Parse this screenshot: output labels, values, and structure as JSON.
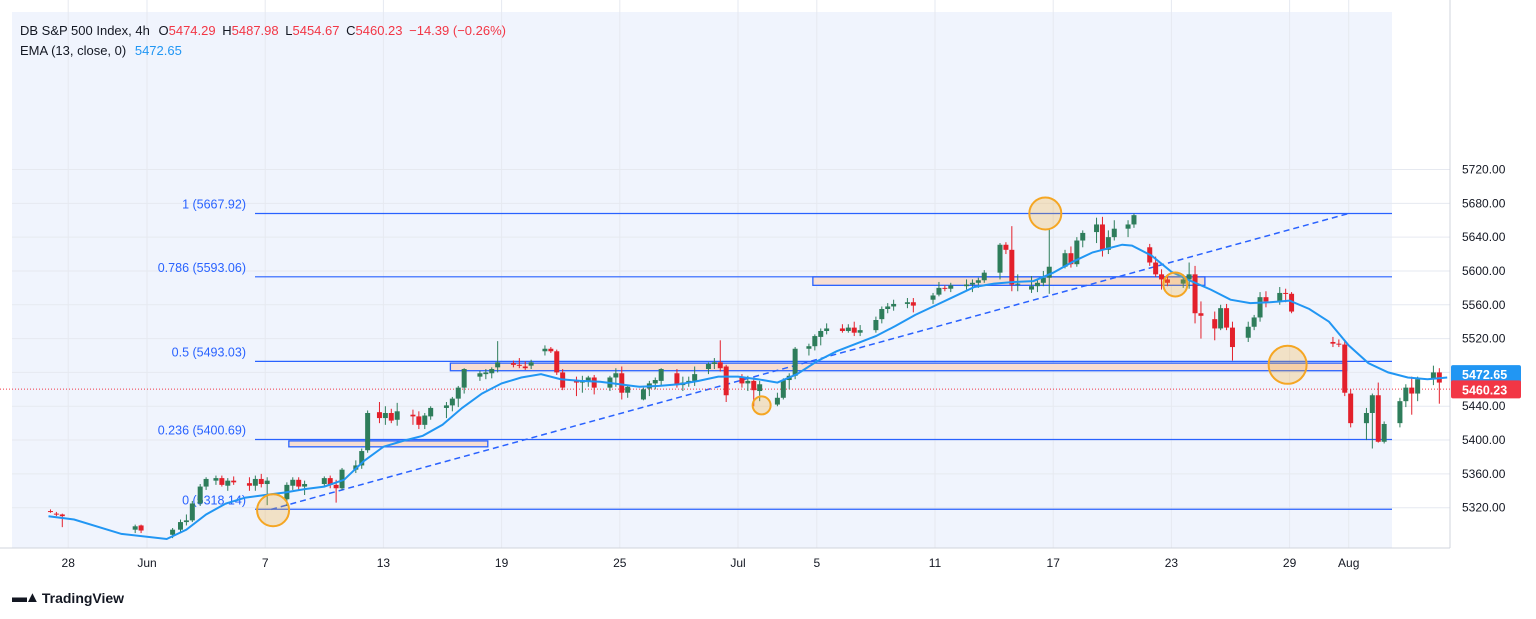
{
  "legend": {
    "symbol": "DB S&P 500 Index, 4h",
    "open_label": "O",
    "open": "5474.29",
    "high_label": "H",
    "high": "5487.98",
    "low_label": "L",
    "low": "5454.67",
    "close_label": "C",
    "close": "5460.23",
    "change": "−14.39 (−0.26%)",
    "ema_label": "EMA (13, close, 0)",
    "ema_value": "5472.65"
  },
  "branding": {
    "name": "TradingView"
  },
  "colors": {
    "up": "#26a69a",
    "up_dark": "#2e7d5b",
    "down": "#e3202b",
    "ema": "#2196f3",
    "fib": "#2962ff",
    "zone_fill": "#f7ded3",
    "zone_stroke": "#2962ff",
    "circle": "#f5a623",
    "price_ema_badge": "#2196f3",
    "price_close_badge": "#f23645"
  },
  "chart_data": {
    "type": "candlestick",
    "ylim": [
      5288,
      5738
    ],
    "y_ticks": [
      "5320.00",
      "5360.00",
      "5400.00",
      "5440.00",
      "5480.00",
      "5520.00",
      "5560.00",
      "5600.00",
      "5640.00",
      "5680.00",
      "5720.00"
    ],
    "x_ticks": [
      {
        "label": "28",
        "day": -4
      },
      {
        "label": "Jun",
        "day": 0
      },
      {
        "label": "7",
        "day": 6
      },
      {
        "label": "13",
        "day": 12
      },
      {
        "label": "19",
        "day": 18
      },
      {
        "label": "25",
        "day": 24
      },
      {
        "label": "Jul",
        "day": 30
      },
      {
        "label": "5",
        "day": 34
      },
      {
        "label": "11",
        "day": 40
      },
      {
        "label": "17",
        "day": 46
      },
      {
        "label": "23",
        "day": 52
      },
      {
        "label": "29",
        "day": 58
      },
      {
        "label": "Aug",
        "day": 61
      }
    ],
    "fib_levels": [
      {
        "label": "1 (5667.92)",
        "value": 5667.92
      },
      {
        "label": "0.786 (5593.06)",
        "value": 5593.06
      },
      {
        "label": "0.5 (5493.03)",
        "value": 5493.03
      },
      {
        "label": "0.236 (5400.69)",
        "value": 5400.69
      },
      {
        "label": "0 (5318.14)",
        "value": 5318.14
      }
    ],
    "trend_line": {
      "from": {
        "day": 6.3,
        "price": 5318
      },
      "to": {
        "day": 61,
        "price": 5668
      }
    },
    "zones": [
      {
        "day_from": 7.2,
        "day_to": 17.3,
        "price_top": 5399,
        "price_bottom": 5392
      },
      {
        "day_from": 15.4,
        "day_to": 60.9,
        "price_top": 5491,
        "price_bottom": 5482
      },
      {
        "day_from": 33.8,
        "day_to": 53.7,
        "price_top": 5593,
        "price_bottom": 5583
      }
    ],
    "circles": [
      {
        "day": 6.4,
        "price": 5317,
        "r": 16
      },
      {
        "day": 31.2,
        "price": 5441,
        "r": 9
      },
      {
        "day": 45.6,
        "price": 5668,
        "r": 16
      },
      {
        "day": 52.2,
        "price": 5584,
        "r": 12
      },
      {
        "day": 57.9,
        "price": 5489,
        "r": 19
      }
    ],
    "price_badges": [
      {
        "label": "5472.65",
        "value": 5478,
        "color": "#2196f3"
      },
      {
        "label": "5460.23",
        "value": 5460,
        "color": "#f23645"
      }
    ],
    "close_line": 5460.23,
    "candles": [
      [
        -4.9,
        5316,
        5318,
        5314,
        5315
      ],
      [
        -4.6,
        5313,
        5315,
        5310,
        5312
      ],
      [
        -4.3,
        5312,
        5313,
        5297,
        5310
      ],
      [
        -0.6,
        5294,
        5300,
        5290,
        5298
      ],
      [
        -0.3,
        5299,
        5300,
        5290,
        5293
      ],
      [
        1.3,
        5288,
        5296,
        5284,
        5294
      ],
      [
        1.7,
        5294,
        5306,
        5291,
        5303
      ],
      [
        2.0,
        5303,
        5312,
        5299,
        5305
      ],
      [
        2.3,
        5305,
        5328,
        5303,
        5325
      ],
      [
        2.7,
        5325,
        5348,
        5322,
        5345
      ],
      [
        3.0,
        5345,
        5356,
        5341,
        5354
      ],
      [
        3.5,
        5352,
        5358,
        5347,
        5355
      ],
      [
        3.8,
        5355,
        5358,
        5345,
        5347
      ],
      [
        4.1,
        5346,
        5355,
        5340,
        5352
      ],
      [
        4.4,
        5352,
        5357,
        5347,
        5350
      ],
      [
        5.2,
        5349,
        5356,
        5340,
        5346
      ],
      [
        5.5,
        5346,
        5358,
        5340,
        5354
      ],
      [
        5.8,
        5354,
        5360,
        5344,
        5348
      ],
      [
        6.1,
        5348,
        5356,
        5323,
        5352
      ],
      [
        7.1,
        5330,
        5350,
        5322,
        5347
      ],
      [
        7.4,
        5346,
        5356,
        5341,
        5353
      ],
      [
        7.7,
        5353,
        5356,
        5340,
        5345
      ],
      [
        8.0,
        5345,
        5352,
        5335,
        5348
      ],
      [
        9.0,
        5348,
        5357,
        5345,
        5355
      ],
      [
        9.3,
        5355,
        5358,
        5343,
        5347
      ],
      [
        9.6,
        5347,
        5353,
        5326,
        5343
      ],
      [
        9.9,
        5343,
        5367,
        5341,
        5365
      ],
      [
        10.6,
        5365,
        5376,
        5361,
        5370
      ],
      [
        10.9,
        5370,
        5390,
        5366,
        5387
      ],
      [
        11.2,
        5388,
        5435,
        5385,
        5432
      ],
      [
        11.8,
        5433,
        5445,
        5420,
        5426
      ],
      [
        12.1,
        5426,
        5440,
        5418,
        5432
      ],
      [
        12.4,
        5432,
        5437,
        5420,
        5423
      ],
      [
        12.7,
        5424,
        5444,
        5417,
        5434
      ],
      [
        13.5,
        5430,
        5436,
        5418,
        5428
      ],
      [
        13.8,
        5428,
        5434,
        5413,
        5418
      ],
      [
        14.1,
        5418,
        5432,
        5413,
        5429
      ],
      [
        14.4,
        5428,
        5440,
        5424,
        5438
      ],
      [
        15.2,
        5438,
        5445,
        5426,
        5441
      ],
      [
        15.5,
        5441,
        5451,
        5434,
        5449
      ],
      [
        15.8,
        5449,
        5464,
        5439,
        5462
      ],
      [
        16.1,
        5462,
        5485,
        5455,
        5484
      ],
      [
        16.9,
        5475,
        5482,
        5470,
        5479
      ],
      [
        17.2,
        5478,
        5484,
        5472,
        5480
      ],
      [
        17.5,
        5479,
        5486,
        5473,
        5484
      ],
      [
        17.8,
        5486,
        5517,
        5480,
        5492
      ],
      [
        18.6,
        5491,
        5494,
        5486,
        5489
      ],
      [
        18.9,
        5489,
        5497,
        5485,
        5488
      ],
      [
        19.2,
        5487,
        5493,
        5483,
        5485
      ],
      [
        19.5,
        5488,
        5495,
        5484,
        5492
      ],
      [
        20.2,
        5505,
        5512,
        5500,
        5508
      ],
      [
        20.5,
        5508,
        5510,
        5503,
        5505
      ],
      [
        20.8,
        5505,
        5507,
        5477,
        5480
      ],
      [
        21.1,
        5480,
        5484,
        5459,
        5462
      ],
      [
        21.8,
        5470,
        5475,
        5452,
        5468
      ],
      [
        22.1,
        5468,
        5476,
        5456,
        5471
      ],
      [
        22.4,
        5470,
        5476,
        5463,
        5474
      ],
      [
        22.7,
        5474,
        5477,
        5454,
        5462
      ],
      [
        23.5,
        5462,
        5476,
        5458,
        5474
      ],
      [
        23.8,
        5474,
        5485,
        5463,
        5479
      ],
      [
        24.1,
        5479,
        5487,
        5448,
        5456
      ],
      [
        24.4,
        5456,
        5465,
        5450,
        5463
      ],
      [
        25.2,
        5448,
        5462,
        5447,
        5460
      ],
      [
        25.5,
        5461,
        5470,
        5452,
        5467
      ],
      [
        25.8,
        5467,
        5474,
        5460,
        5471
      ],
      [
        26.1,
        5470,
        5485,
        5464,
        5484
      ],
      [
        26.9,
        5479,
        5484,
        5462,
        5465
      ],
      [
        27.2,
        5465,
        5475,
        5458,
        5468
      ],
      [
        27.5,
        5468,
        5475,
        5463,
        5470
      ],
      [
        27.8,
        5470,
        5487,
        5464,
        5478
      ],
      [
        28.5,
        5484,
        5492,
        5478,
        5490
      ],
      [
        28.8,
        5490,
        5497,
        5484,
        5492
      ],
      [
        29.1,
        5492,
        5518,
        5481,
        5485
      ],
      [
        29.4,
        5487,
        5489,
        5445,
        5453
      ],
      [
        30.2,
        5474,
        5478,
        5462,
        5467
      ],
      [
        30.5,
        5467,
        5476,
        5458,
        5470
      ],
      [
        30.8,
        5470,
        5474,
        5440,
        5459
      ],
      [
        31.1,
        5458,
        5470,
        5446,
        5466
      ],
      [
        32.0,
        5442,
        5456,
        5440,
        5450
      ],
      [
        32.3,
        5450,
        5473,
        5448,
        5471
      ],
      [
        32.6,
        5471,
        5479,
        5460,
        5476
      ],
      [
        32.9,
        5476,
        5510,
        5472,
        5508
      ],
      [
        33.6,
        5508,
        5514,
        5500,
        5511
      ],
      [
        33.9,
        5511,
        5525,
        5506,
        5523
      ],
      [
        34.2,
        5522,
        5532,
        5512,
        5529
      ],
      [
        34.5,
        5529,
        5538,
        5525,
        5532
      ],
      [
        35.3,
        5532,
        5537,
        5527,
        5529
      ],
      [
        35.6,
        5529,
        5537,
        5527,
        5533
      ],
      [
        35.9,
        5533,
        5540,
        5523,
        5527
      ],
      [
        36.2,
        5527,
        5536,
        5523,
        5530
      ],
      [
        37.0,
        5530,
        5546,
        5527,
        5542
      ],
      [
        37.3,
        5543,
        5558,
        5538,
        5555
      ],
      [
        37.6,
        5555,
        5562,
        5550,
        5558
      ],
      [
        37.9,
        5558,
        5566,
        5553,
        5561
      ],
      [
        38.6,
        5561,
        5568,
        5556,
        5563
      ],
      [
        38.9,
        5563,
        5568,
        5551,
        5559
      ],
      [
        39.9,
        5566,
        5574,
        5561,
        5571
      ],
      [
        40.2,
        5572,
        5587,
        5570,
        5580
      ],
      [
        40.5,
        5580,
        5583,
        5576,
        5579
      ],
      [
        40.8,
        5579,
        5586,
        5575,
        5583
      ],
      [
        41.6,
        5582,
        5590,
        5578,
        5584
      ],
      [
        41.9,
        5584,
        5590,
        5575,
        5586
      ],
      [
        42.2,
        5586,
        5592,
        5580,
        5589
      ],
      [
        42.5,
        5589,
        5601,
        5586,
        5598
      ],
      [
        43.3,
        5598,
        5633,
        5590,
        5631
      ],
      [
        43.6,
        5631,
        5634,
        5620,
        5625
      ],
      [
        43.9,
        5625,
        5653,
        5576,
        5584
      ],
      [
        44.2,
        5584,
        5596,
        5576,
        5585
      ],
      [
        44.9,
        5578,
        5594,
        5574,
        5582
      ],
      [
        45.2,
        5582,
        5589,
        5575,
        5586
      ],
      [
        45.5,
        5586,
        5600,
        5582,
        5592
      ],
      [
        45.8,
        5592,
        5649,
        5573,
        5605
      ],
      [
        46.6,
        5605,
        5625,
        5603,
        5621
      ],
      [
        46.9,
        5621,
        5629,
        5604,
        5608
      ],
      [
        47.2,
        5608,
        5640,
        5605,
        5636
      ],
      [
        47.5,
        5636,
        5648,
        5628,
        5645
      ],
      [
        48.2,
        5646,
        5663,
        5633,
        5655
      ],
      [
        48.5,
        5655,
        5664,
        5617,
        5625
      ],
      [
        48.8,
        5625,
        5648,
        5620,
        5640
      ],
      [
        49.1,
        5640,
        5660,
        5636,
        5650
      ],
      [
        49.8,
        5650,
        5660,
        5640,
        5655
      ],
      [
        50.1,
        5655,
        5668,
        5651,
        5666
      ],
      [
        50.9,
        5628,
        5632,
        5606,
        5610
      ],
      [
        51.2,
        5610,
        5617,
        5593,
        5596
      ],
      [
        51.5,
        5596,
        5602,
        5578,
        5590
      ],
      [
        51.8,
        5590,
        5596,
        5582,
        5586
      ],
      [
        52.6,
        5585,
        5596,
        5580,
        5590
      ],
      [
        52.9,
        5590,
        5610,
        5579,
        5596
      ],
      [
        53.2,
        5596,
        5606,
        5538,
        5550
      ],
      [
        53.5,
        5550,
        5564,
        5520,
        5547
      ],
      [
        54.2,
        5543,
        5552,
        5518,
        5532
      ],
      [
        54.5,
        5532,
        5560,
        5530,
        5556
      ],
      [
        54.8,
        5556,
        5561,
        5530,
        5533
      ],
      [
        55.1,
        5533,
        5540,
        5494,
        5510
      ],
      [
        55.9,
        5521,
        5540,
        5516,
        5534
      ],
      [
        56.2,
        5534,
        5548,
        5530,
        5545
      ],
      [
        56.5,
        5545,
        5575,
        5540,
        5569
      ],
      [
        56.8,
        5569,
        5576,
        5557,
        5564
      ],
      [
        57.5,
        5564,
        5581,
        5560,
        5574
      ],
      [
        57.8,
        5574,
        5579,
        5563,
        5573
      ],
      [
        58.1,
        5573,
        5575,
        5550,
        5552
      ],
      [
        60.2,
        5516,
        5522,
        5510,
        5514
      ],
      [
        60.5,
        5514,
        5519,
        5510,
        5513
      ],
      [
        60.8,
        5513,
        5517,
        5452,
        5456
      ],
      [
        61.1,
        5455,
        5460,
        5415,
        5420
      ],
      [
        61.9,
        5420,
        5438,
        5400,
        5432
      ],
      [
        62.2,
        5432,
        5455,
        5390,
        5453
      ],
      [
        62.5,
        5453,
        5468,
        5397,
        5398
      ],
      [
        62.8,
        5398,
        5422,
        5396,
        5419
      ],
      [
        63.6,
        5420,
        5450,
        5415,
        5446
      ],
      [
        63.9,
        5446,
        5466,
        5439,
        5462
      ],
      [
        64.2,
        5462,
        5475,
        5430,
        5455
      ],
      [
        64.5,
        5455,
        5475,
        5446,
        5472
      ],
      [
        65.3,
        5472,
        5488,
        5465,
        5480
      ],
      [
        65.6,
        5480,
        5485,
        5443,
        5468
      ],
      [
        65.9,
        5468,
        5476,
        5454,
        5474
      ],
      [
        66.2,
        5474,
        5488,
        5454,
        5460
      ]
    ],
    "ema_13": [
      [
        -5,
        5310
      ],
      [
        -3.7,
        5306
      ],
      [
        -1.3,
        5289
      ],
      [
        1,
        5283
      ],
      [
        2,
        5294
      ],
      [
        3,
        5312
      ],
      [
        4,
        5325
      ],
      [
        5,
        5332
      ],
      [
        6,
        5335
      ],
      [
        7,
        5338
      ],
      [
        8,
        5342
      ],
      [
        9,
        5345
      ],
      [
        10,
        5353
      ],
      [
        11,
        5375
      ],
      [
        12,
        5392
      ],
      [
        13,
        5399
      ],
      [
        14,
        5405
      ],
      [
        15,
        5418
      ],
      [
        16,
        5438
      ],
      [
        17,
        5455
      ],
      [
        18,
        5467
      ],
      [
        19,
        5474
      ],
      [
        20,
        5478
      ],
      [
        21,
        5472
      ],
      [
        22,
        5470
      ],
      [
        23,
        5469
      ],
      [
        24,
        5466
      ],
      [
        25,
        5463
      ],
      [
        26,
        5464
      ],
      [
        27,
        5466
      ],
      [
        28,
        5470
      ],
      [
        29,
        5475
      ],
      [
        30,
        5475
      ],
      [
        31,
        5472
      ],
      [
        32,
        5468
      ],
      [
        33,
        5478
      ],
      [
        34,
        5493
      ],
      [
        35,
        5505
      ],
      [
        36,
        5514
      ],
      [
        37,
        5523
      ],
      [
        38,
        5535
      ],
      [
        39,
        5548
      ],
      [
        40,
        5559
      ],
      [
        41,
        5570
      ],
      [
        42,
        5581
      ],
      [
        43,
        5585
      ],
      [
        44,
        5587
      ],
      [
        45,
        5588
      ],
      [
        46,
        5598
      ],
      [
        47,
        5611
      ],
      [
        48,
        5622
      ],
      [
        49,
        5628
      ],
      [
        49.5,
        5631
      ],
      [
        50,
        5630
      ],
      [
        51,
        5618
      ],
      [
        52,
        5599
      ],
      [
        53,
        5588
      ],
      [
        54,
        5578
      ],
      [
        55,
        5566
      ],
      [
        56,
        5562
      ],
      [
        57,
        5563
      ],
      [
        58,
        5565
      ],
      [
        59,
        5555
      ],
      [
        60,
        5540
      ],
      [
        61,
        5512
      ],
      [
        62,
        5491
      ],
      [
        63,
        5480
      ],
      [
        64,
        5474
      ],
      [
        65,
        5472
      ],
      [
        66,
        5474
      ],
      [
        67,
        5472.65
      ]
    ]
  }
}
